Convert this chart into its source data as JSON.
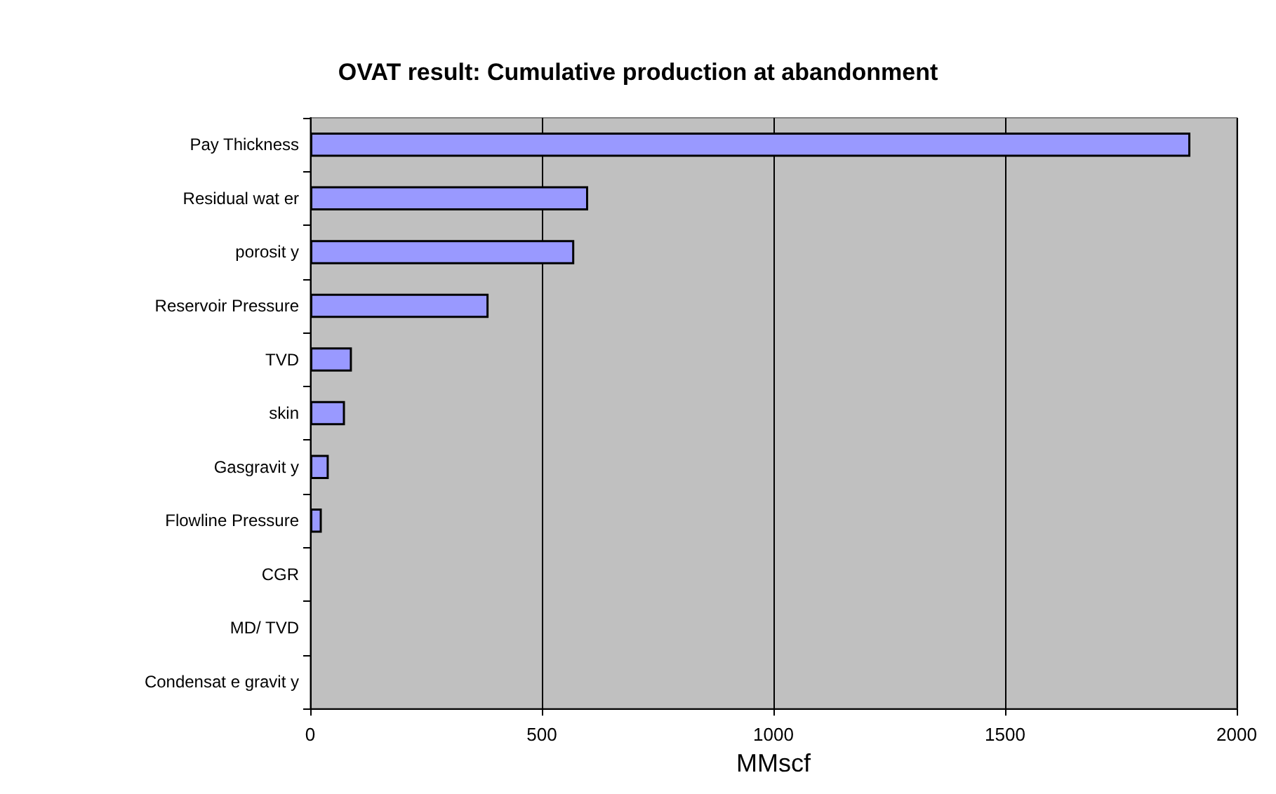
{
  "chart_data": {
    "type": "bar",
    "orientation": "horizontal",
    "title": "OVAT result: Cumulative production at abandonment",
    "xlabel": "MMscf",
    "categories": [
      "Pay Thickness",
      "Residual wat er",
      "porosit y",
      "Reservoir Pressure",
      "TVD",
      "skin",
      "Gasgravit y",
      "Flowline Pressure",
      "CGR",
      "MD/ TVD",
      "Condensat e gravit y"
    ],
    "values": [
      1900,
      600,
      570,
      385,
      90,
      75,
      40,
      25,
      0,
      0,
      0
    ],
    "color": "#9999ff",
    "xlim": [
      0,
      2000
    ],
    "xticks": [
      0,
      500,
      1000,
      1500,
      2000
    ],
    "grid": "x"
  }
}
